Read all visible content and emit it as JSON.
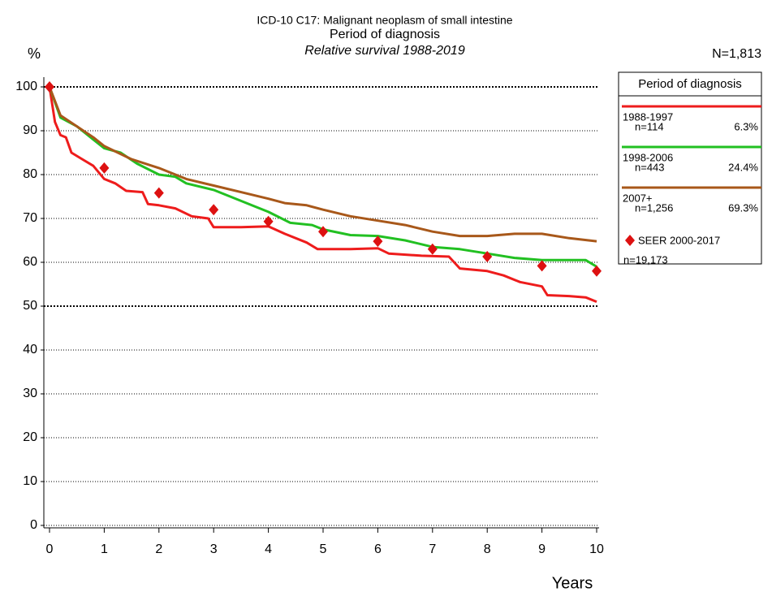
{
  "chart_data": {
    "type": "line",
    "title": "ICD-10 C17: Malignant neoplasm of small intestine",
    "subtitle": "Period of diagnosis",
    "subtitle2": "Relative survival 1988-2019",
    "y_label": "%",
    "x_label": "Years",
    "total_label": "N=1,813",
    "legend_title": "Period of diagnosis",
    "xlim": [
      0,
      10
    ],
    "xticks": [
      0,
      1,
      2,
      3,
      4,
      5,
      6,
      7,
      8,
      9,
      10
    ],
    "ylim": [
      0,
      100
    ],
    "yticks": [
      0,
      10,
      20,
      30,
      40,
      50,
      60,
      70,
      80,
      90,
      100
    ],
    "grid": true,
    "bold_grid": [
      50,
      100
    ],
    "series": [
      {
        "name": "1988-1997",
        "n_label": "n=114",
        "pct_label": "6.3%",
        "color": "#ee1c1c",
        "x": [
          0,
          0.1,
          0.2,
          0.3,
          0.4,
          0.6,
          0.8,
          1,
          1.2,
          1.4,
          1.7,
          1.8,
          2,
          2.3,
          2.6,
          2.9,
          3,
          3.5,
          4,
          4.3,
          4.7,
          4.9,
          5.5,
          6,
          6.2,
          6.8,
          7.3,
          7.5,
          8,
          8.3,
          8.6,
          9,
          9.1,
          9.5,
          9.8,
          10
        ],
        "values": [
          100,
          92,
          89,
          88.5,
          85,
          83.5,
          82,
          79,
          78,
          76.3,
          76,
          73.3,
          73,
          72.3,
          70.5,
          70,
          68,
          68,
          68.2,
          66.5,
          64.5,
          63,
          63,
          63.2,
          62,
          61.5,
          61.3,
          58.6,
          58,
          57,
          55.5,
          54.5,
          52.5,
          52.3,
          52,
          51
        ]
      },
      {
        "name": "1998-2006",
        "n_label": "n=443",
        "pct_label": "24.4%",
        "color": "#22c022",
        "x": [
          0,
          0.2,
          0.5,
          0.8,
          1,
          1.3,
          1.6,
          2,
          2.3,
          2.5,
          3,
          3.5,
          4,
          4.4,
          4.8,
          5,
          5.5,
          6,
          6.5,
          7,
          7.5,
          8,
          8.5,
          9,
          9.5,
          9.8,
          10
        ],
        "values": [
          100,
          93,
          91,
          88,
          86,
          85,
          82.5,
          80,
          79.5,
          78,
          76.5,
          74,
          71.5,
          69,
          68.5,
          67.5,
          66.2,
          66,
          65,
          63.5,
          63,
          62,
          61,
          60.5,
          60.5,
          60.5,
          59
        ]
      },
      {
        "name": "2007+",
        "n_label": "n=1,256",
        "pct_label": "69.3%",
        "color": "#a8581a",
        "x": [
          0,
          0.2,
          0.5,
          0.8,
          1,
          1.5,
          2,
          2.5,
          3,
          3.5,
          4,
          4.3,
          4.7,
          5,
          5.5,
          6,
          6.5,
          7,
          7.5,
          8,
          8.5,
          9,
          9.5,
          10
        ],
        "values": [
          100,
          93.5,
          91,
          88.5,
          86.5,
          83.5,
          81.5,
          79,
          77.5,
          76,
          74.5,
          73.5,
          73,
          72,
          70.5,
          69.5,
          68.5,
          67,
          66,
          66,
          66.5,
          66.5,
          65.5,
          64.8
        ]
      }
    ],
    "reference": {
      "name": "SEER 2000-2017",
      "n_label": "n=19,173",
      "color": "#dd1111",
      "x": [
        0,
        1,
        2,
        3,
        4,
        5,
        6,
        7,
        8,
        9,
        10
      ],
      "values": [
        100,
        81.5,
        75.8,
        72,
        69.3,
        67,
        64.8,
        63,
        61.3,
        59.2,
        58
      ]
    }
  }
}
